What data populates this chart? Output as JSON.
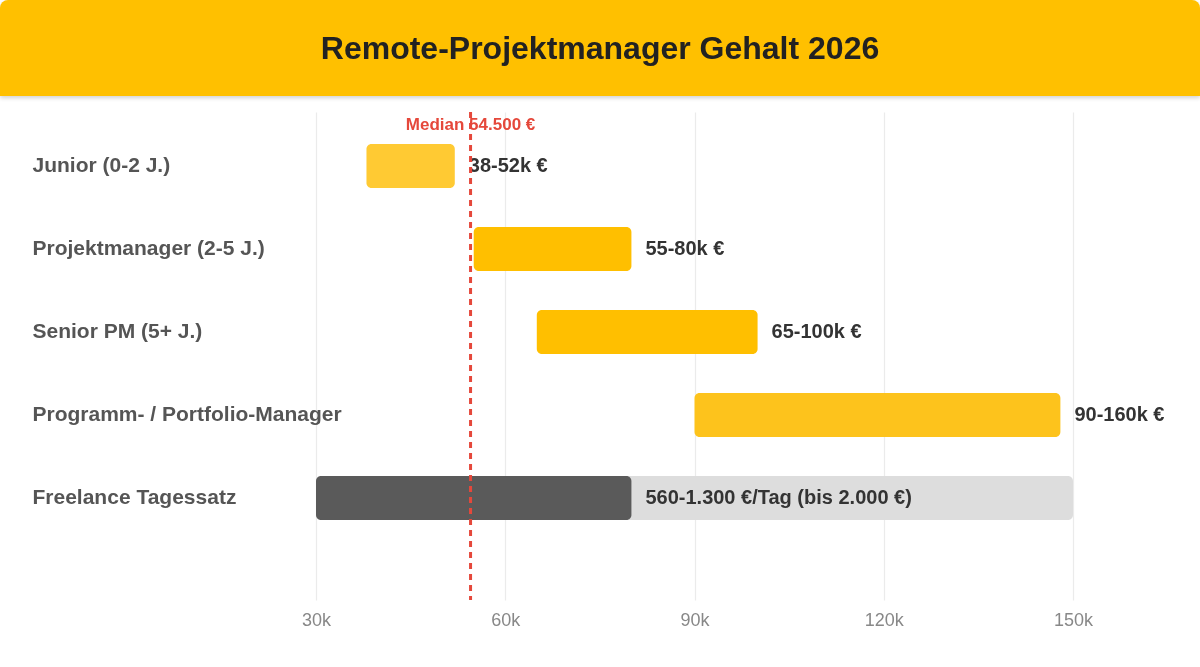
{
  "chart_data": {
    "type": "bar",
    "title": "Remote-Projektmanager Gehalt 2026",
    "orientation": "horizontal",
    "categories": [
      "Junior (0-2 J.)",
      "Projektmanager (2-5 J.)",
      "Senior PM (5+ J.)",
      "Programm- / Portfolio-Manager",
      "Freelance Tagessatz"
    ],
    "series": [
      {
        "color": "#dddddd",
        "base": [
          null,
          null,
          null,
          null,
          30000
        ],
        "values": [
          null,
          null,
          null,
          null,
          120000
        ]
      },
      {
        "colors": [
          "#ffca33",
          "#ffbf00",
          "#ffbf00",
          "#fdc31c",
          "#5a5a5a"
        ],
        "base": [
          38000,
          55000,
          65000,
          90000,
          30000
        ],
        "values": [
          14000,
          25000,
          35000,
          58000,
          50000
        ],
        "value_labels": [
          "38-52k €",
          "55-80k €",
          "65-100k €",
          "90-160k €",
          "560-1.300 €/Tag (bis 2.000 €)"
        ]
      }
    ],
    "xlim": [
      30000,
      150000
    ],
    "xticks": [
      {
        "value": 30000,
        "label": "30k"
      },
      {
        "value": 60000,
        "label": "60k"
      },
      {
        "value": 90000,
        "label": "90k"
      },
      {
        "value": 120000,
        "label": "120k"
      },
      {
        "value": 150000,
        "label": "150k"
      }
    ],
    "grid": "x",
    "ref_lines": [
      {
        "axis": "x",
        "value": 54500,
        "label": "Median 54.500 €",
        "color": "#e5483b",
        "line_style": "dashed"
      }
    ]
  }
}
